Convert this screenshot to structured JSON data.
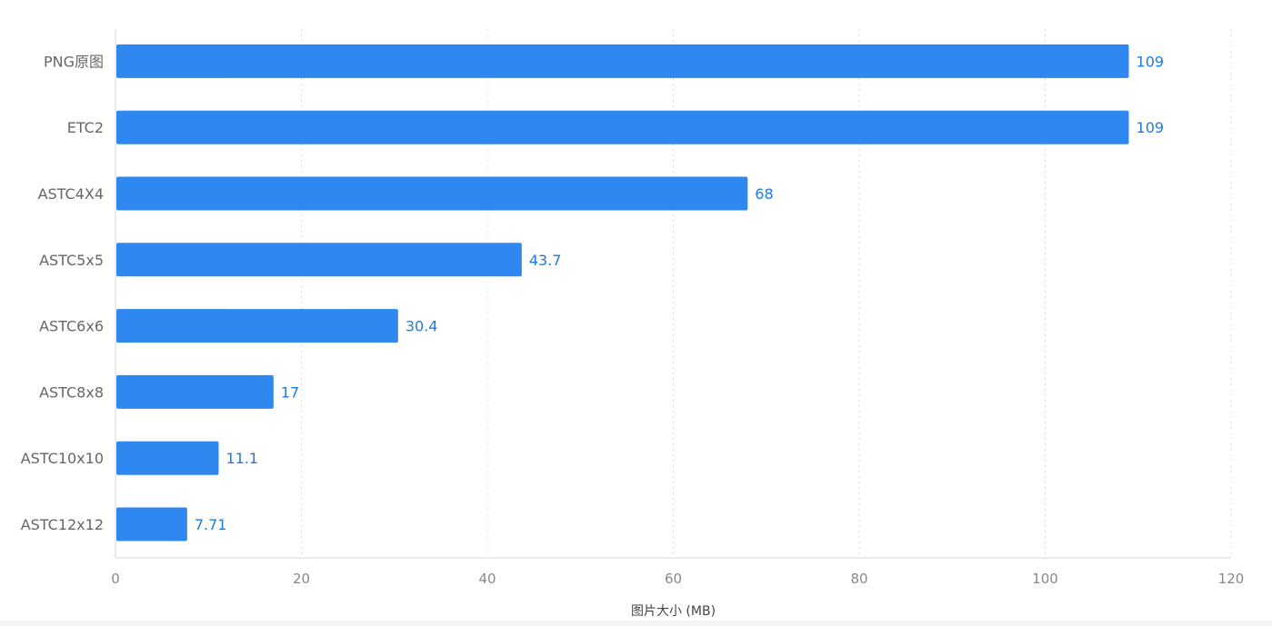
{
  "chart_data": {
    "type": "bar",
    "orientation": "horizontal",
    "categories": [
      "PNG原图",
      "ETC2",
      "ASTC4X4",
      "ASTC5x5",
      "ASTC6x6",
      "ASTC8x8",
      "ASTC10x10",
      "ASTC12x12"
    ],
    "values": [
      109,
      109,
      68,
      43.7,
      30.4,
      17,
      11.1,
      7.71
    ],
    "value_labels": [
      "109",
      "109",
      "68",
      "43.7",
      "30.4",
      "17",
      "11.1",
      "7.71"
    ],
    "xlabel": "图片大小 (MB)",
    "ylabel": "",
    "xlim": [
      0,
      120
    ],
    "xticks": [
      0,
      20,
      40,
      60,
      80,
      100,
      120
    ],
    "grid": "vertical-dotted",
    "bar_color": "#2e88f0",
    "label_color": "#1f7ae0"
  }
}
